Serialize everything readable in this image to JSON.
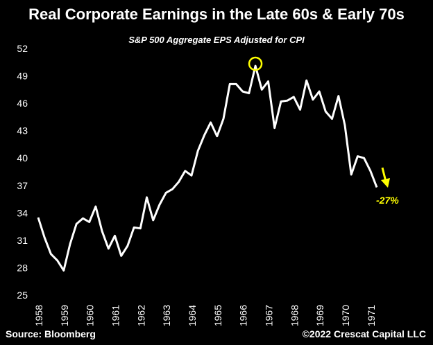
{
  "title": "Real Corporate Earnings in the Late 60s & Early 70s",
  "subtitle": "S&P 500 Aggregate EPS Adjusted for CPI",
  "source": "Source: Bloomberg",
  "copyright": "©2022 Crescat Capital LLC",
  "colors": {
    "background": "#000000",
    "line": "#ffffff",
    "highlight": "#ffff00"
  },
  "chart_data": {
    "type": "line",
    "title": "Real Corporate Earnings in the Late 60s & Early 70s",
    "subtitle": "S&P 500 Aggregate EPS Adjusted for CPI",
    "xlabel": "",
    "ylabel": "",
    "ylim": [
      25,
      52
    ],
    "yticks": [
      52,
      49,
      46,
      43,
      40,
      37,
      34,
      31,
      28,
      25
    ],
    "xticks": [
      "1958",
      "1959",
      "1960",
      "1961",
      "1962",
      "1963",
      "1964",
      "1965",
      "1966",
      "1967",
      "1968",
      "1969",
      "1970",
      "1971"
    ],
    "grid": false,
    "legend": "none",
    "series": [
      {
        "x": [
          1958.0,
          1958.25,
          1958.5,
          1958.75,
          1959.0,
          1959.25,
          1959.5,
          1959.75,
          1960.0,
          1960.25,
          1960.5,
          1960.75,
          1961.0,
          1961.25,
          1961.5,
          1961.75,
          1962.0,
          1962.25,
          1962.5,
          1962.75,
          1963.0,
          1963.25,
          1963.5,
          1963.75,
          1964.0,
          1964.25,
          1964.5,
          1964.75,
          1965.0,
          1965.25,
          1965.5,
          1965.75,
          1966.0,
          1966.25,
          1966.5,
          1966.75,
          1967.0,
          1967.25,
          1967.5,
          1967.75,
          1968.0,
          1968.25,
          1968.5,
          1968.75,
          1969.0,
          1969.25,
          1969.5,
          1969.75,
          1970.0,
          1970.25,
          1970.5,
          1970.75,
          1971.0,
          1971.25
        ],
        "values": [
          33.5,
          31.3,
          29.5,
          28.8,
          27.7,
          30.6,
          32.8,
          33.4,
          33.0,
          34.7,
          32.0,
          30.1,
          31.5,
          29.3,
          30.4,
          32.4,
          32.3,
          35.7,
          33.2,
          34.9,
          36.2,
          36.6,
          37.4,
          38.6,
          38.1,
          40.8,
          42.5,
          43.9,
          42.4,
          44.3,
          48.1,
          48.1,
          47.3,
          47.1,
          50.1,
          47.5,
          48.4,
          43.3,
          46.2,
          46.3,
          46.7,
          45.3,
          48.5,
          46.4,
          47.3,
          45.1,
          44.3,
          46.8,
          43.6,
          38.2,
          40.2,
          40.0,
          38.6,
          36.8
        ]
      }
    ],
    "annotations": [
      {
        "text": "-27%",
        "color": "#ffff00",
        "arrow": "down"
      }
    ],
    "highlight": {
      "x": 1966.5,
      "y": 50.1,
      "shape": "circle",
      "color": "#ffff00"
    }
  }
}
